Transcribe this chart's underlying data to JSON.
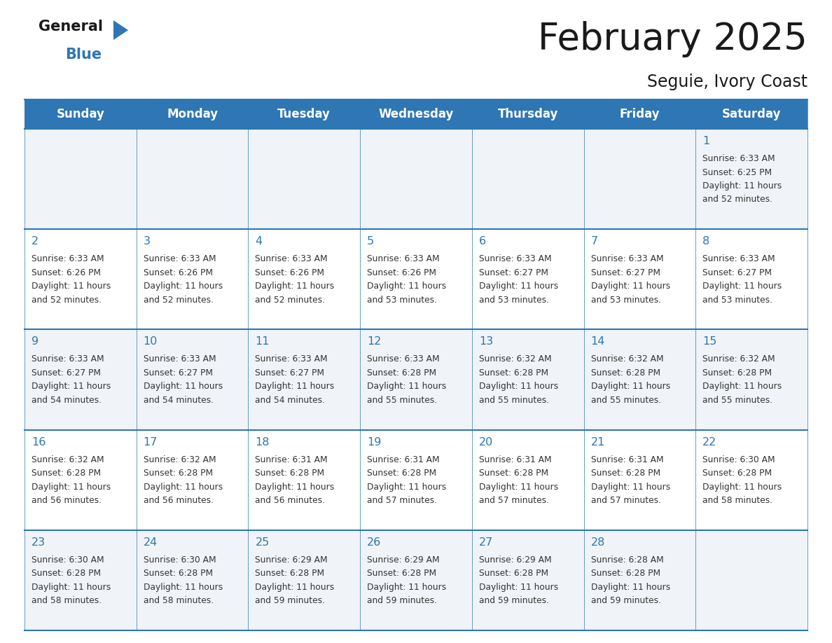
{
  "title": "February 2025",
  "subtitle": "Seguie, Ivory Coast",
  "header_bg": "#2E76B4",
  "header_fg": "#FFFFFF",
  "cell_bg_odd": "#F0F4F8",
  "cell_bg_even": "#FFFFFF",
  "title_color": "#1a1a1a",
  "subtitle_color": "#1a1a1a",
  "day_number_color": "#2E76B4",
  "cell_text_color": "#333333",
  "grid_line_color": "#2E76B4",
  "day_headers": [
    "Sunday",
    "Monday",
    "Tuesday",
    "Wednesday",
    "Thursday",
    "Friday",
    "Saturday"
  ],
  "weeks": [
    [
      {
        "day": null,
        "sunrise": null,
        "sunset": null,
        "daylight": null
      },
      {
        "day": null,
        "sunrise": null,
        "sunset": null,
        "daylight": null
      },
      {
        "day": null,
        "sunrise": null,
        "sunset": null,
        "daylight": null
      },
      {
        "day": null,
        "sunrise": null,
        "sunset": null,
        "daylight": null
      },
      {
        "day": null,
        "sunrise": null,
        "sunset": null,
        "daylight": null
      },
      {
        "day": null,
        "sunrise": null,
        "sunset": null,
        "daylight": null
      },
      {
        "day": 1,
        "sunrise": "6:33 AM",
        "sunset": "6:25 PM",
        "daylight": "11 hours and 52 minutes."
      }
    ],
    [
      {
        "day": 2,
        "sunrise": "6:33 AM",
        "sunset": "6:26 PM",
        "daylight": "11 hours and 52 minutes."
      },
      {
        "day": 3,
        "sunrise": "6:33 AM",
        "sunset": "6:26 PM",
        "daylight": "11 hours and 52 minutes."
      },
      {
        "day": 4,
        "sunrise": "6:33 AM",
        "sunset": "6:26 PM",
        "daylight": "11 hours and 52 minutes."
      },
      {
        "day": 5,
        "sunrise": "6:33 AM",
        "sunset": "6:26 PM",
        "daylight": "11 hours and 53 minutes."
      },
      {
        "day": 6,
        "sunrise": "6:33 AM",
        "sunset": "6:27 PM",
        "daylight": "11 hours and 53 minutes."
      },
      {
        "day": 7,
        "sunrise": "6:33 AM",
        "sunset": "6:27 PM",
        "daylight": "11 hours and 53 minutes."
      },
      {
        "day": 8,
        "sunrise": "6:33 AM",
        "sunset": "6:27 PM",
        "daylight": "11 hours and 53 minutes."
      }
    ],
    [
      {
        "day": 9,
        "sunrise": "6:33 AM",
        "sunset": "6:27 PM",
        "daylight": "11 hours and 54 minutes."
      },
      {
        "day": 10,
        "sunrise": "6:33 AM",
        "sunset": "6:27 PM",
        "daylight": "11 hours and 54 minutes."
      },
      {
        "day": 11,
        "sunrise": "6:33 AM",
        "sunset": "6:27 PM",
        "daylight": "11 hours and 54 minutes."
      },
      {
        "day": 12,
        "sunrise": "6:33 AM",
        "sunset": "6:28 PM",
        "daylight": "11 hours and 55 minutes."
      },
      {
        "day": 13,
        "sunrise": "6:32 AM",
        "sunset": "6:28 PM",
        "daylight": "11 hours and 55 minutes."
      },
      {
        "day": 14,
        "sunrise": "6:32 AM",
        "sunset": "6:28 PM",
        "daylight": "11 hours and 55 minutes."
      },
      {
        "day": 15,
        "sunrise": "6:32 AM",
        "sunset": "6:28 PM",
        "daylight": "11 hours and 55 minutes."
      }
    ],
    [
      {
        "day": 16,
        "sunrise": "6:32 AM",
        "sunset": "6:28 PM",
        "daylight": "11 hours and 56 minutes."
      },
      {
        "day": 17,
        "sunrise": "6:32 AM",
        "sunset": "6:28 PM",
        "daylight": "11 hours and 56 minutes."
      },
      {
        "day": 18,
        "sunrise": "6:31 AM",
        "sunset": "6:28 PM",
        "daylight": "11 hours and 56 minutes."
      },
      {
        "day": 19,
        "sunrise": "6:31 AM",
        "sunset": "6:28 PM",
        "daylight": "11 hours and 57 minutes."
      },
      {
        "day": 20,
        "sunrise": "6:31 AM",
        "sunset": "6:28 PM",
        "daylight": "11 hours and 57 minutes."
      },
      {
        "day": 21,
        "sunrise": "6:31 AM",
        "sunset": "6:28 PM",
        "daylight": "11 hours and 57 minutes."
      },
      {
        "day": 22,
        "sunrise": "6:30 AM",
        "sunset": "6:28 PM",
        "daylight": "11 hours and 58 minutes."
      }
    ],
    [
      {
        "day": 23,
        "sunrise": "6:30 AM",
        "sunset": "6:28 PM",
        "daylight": "11 hours and 58 minutes."
      },
      {
        "day": 24,
        "sunrise": "6:30 AM",
        "sunset": "6:28 PM",
        "daylight": "11 hours and 58 minutes."
      },
      {
        "day": 25,
        "sunrise": "6:29 AM",
        "sunset": "6:28 PM",
        "daylight": "11 hours and 59 minutes."
      },
      {
        "day": 26,
        "sunrise": "6:29 AM",
        "sunset": "6:28 PM",
        "daylight": "11 hours and 59 minutes."
      },
      {
        "day": 27,
        "sunrise": "6:29 AM",
        "sunset": "6:28 PM",
        "daylight": "11 hours and 59 minutes."
      },
      {
        "day": 28,
        "sunrise": "6:28 AM",
        "sunset": "6:28 PM",
        "daylight": "11 hours and 59 minutes."
      },
      {
        "day": null,
        "sunrise": null,
        "sunset": null,
        "daylight": null
      }
    ]
  ]
}
